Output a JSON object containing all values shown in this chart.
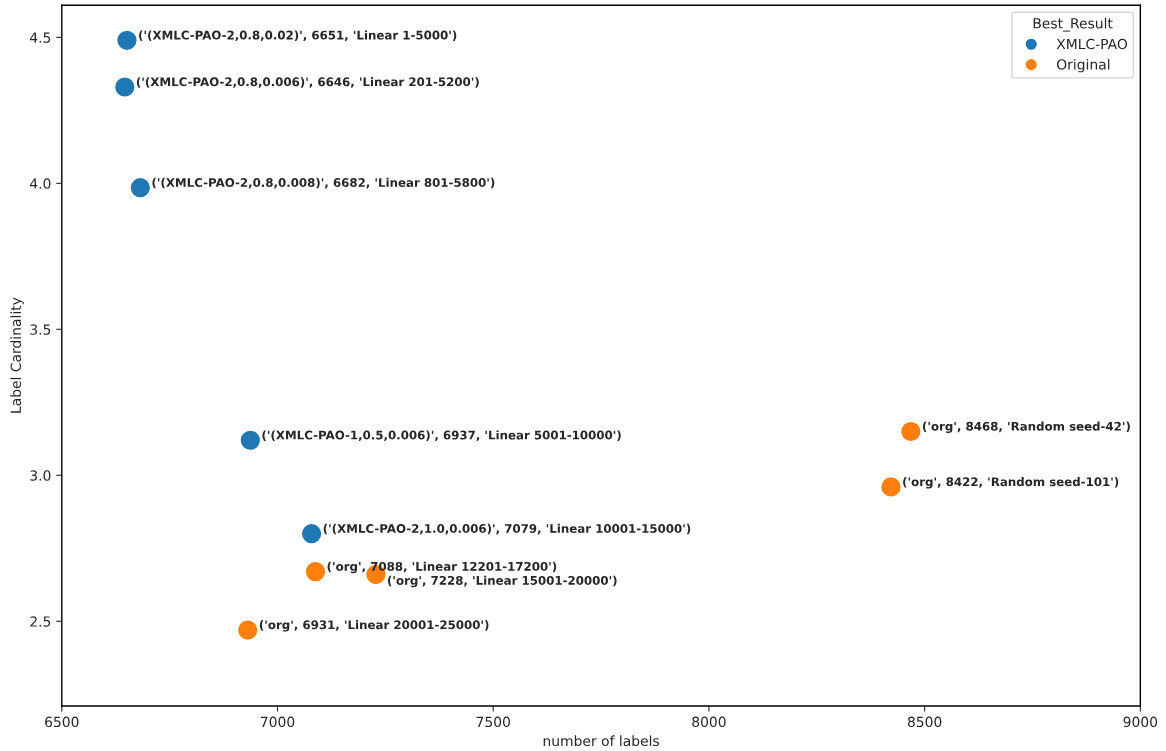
{
  "chart_data": {
    "type": "scatter",
    "xlabel": "number of labels",
    "ylabel": "Label Cardinality",
    "legend_title": "Best_Result",
    "series": [
      {
        "name": "XMLC-PAO",
        "color": "#1f77b4",
        "x": [
          6651,
          6646,
          6682,
          6937,
          7079
        ],
        "values": [
          4.49,
          4.33,
          3.985,
          3.12,
          2.8
        ]
      },
      {
        "name": "Original",
        "color": "#ff7f0e",
        "x": [
          8468,
          8422,
          7088,
          7228,
          6931
        ],
        "values": [
          3.15,
          2.96,
          2.67,
          2.66,
          2.47
        ]
      }
    ],
    "annotations": [
      {
        "text": "('(XMLC-PAO-2,0.8,0.02)', 6651, 'Linear 1-5000')",
        "x": 6651,
        "y": 4.49
      },
      {
        "text": "('(XMLC-PAO-2,0.8,0.006)', 6646, 'Linear 201-5200')",
        "x": 6646,
        "y": 4.33
      },
      {
        "text": "('(XMLC-PAO-2,0.8,0.008)', 6682, 'Linear 801-5800')",
        "x": 6682,
        "y": 3.985
      },
      {
        "text": "('(XMLC-PAO-1,0.5,0.006)', 6937, 'Linear 5001-10000')",
        "x": 6937,
        "y": 3.12
      },
      {
        "text": "('(XMLC-PAO-2,1.0,0.006)', 7079, 'Linear 10001-15000')",
        "x": 7079,
        "y": 2.8
      },
      {
        "text": "('org', 7088, 'Linear 12201-17200')",
        "x": 7088,
        "y": 2.67
      },
      {
        "text": "('org', 7228, 'Linear 15001-20000')",
        "x": 7228,
        "y": 2.66
      },
      {
        "text": "('org', 6931, 'Linear 20001-25000')",
        "x": 6931,
        "y": 2.47
      },
      {
        "text": "('org', 8468, 'Random seed-42')",
        "x": 8468,
        "y": 3.15
      },
      {
        "text": "('org', 8422, 'Random seed-101')",
        "x": 8422,
        "y": 2.96
      }
    ],
    "xlim": [
      6500,
      9000
    ],
    "xticks": [
      6500,
      7000,
      7500,
      8000,
      8500,
      9000
    ],
    "ylim": [
      2.21,
      4.61
    ],
    "yticks": [
      2.5,
      {
        "value": 3,
        "label": "3.0"
      },
      3.5,
      {
        "value": 4,
        "label": "4.0"
      },
      4.5
    ],
    "grid": false,
    "legend": "top right",
    "marker": "circle"
  }
}
